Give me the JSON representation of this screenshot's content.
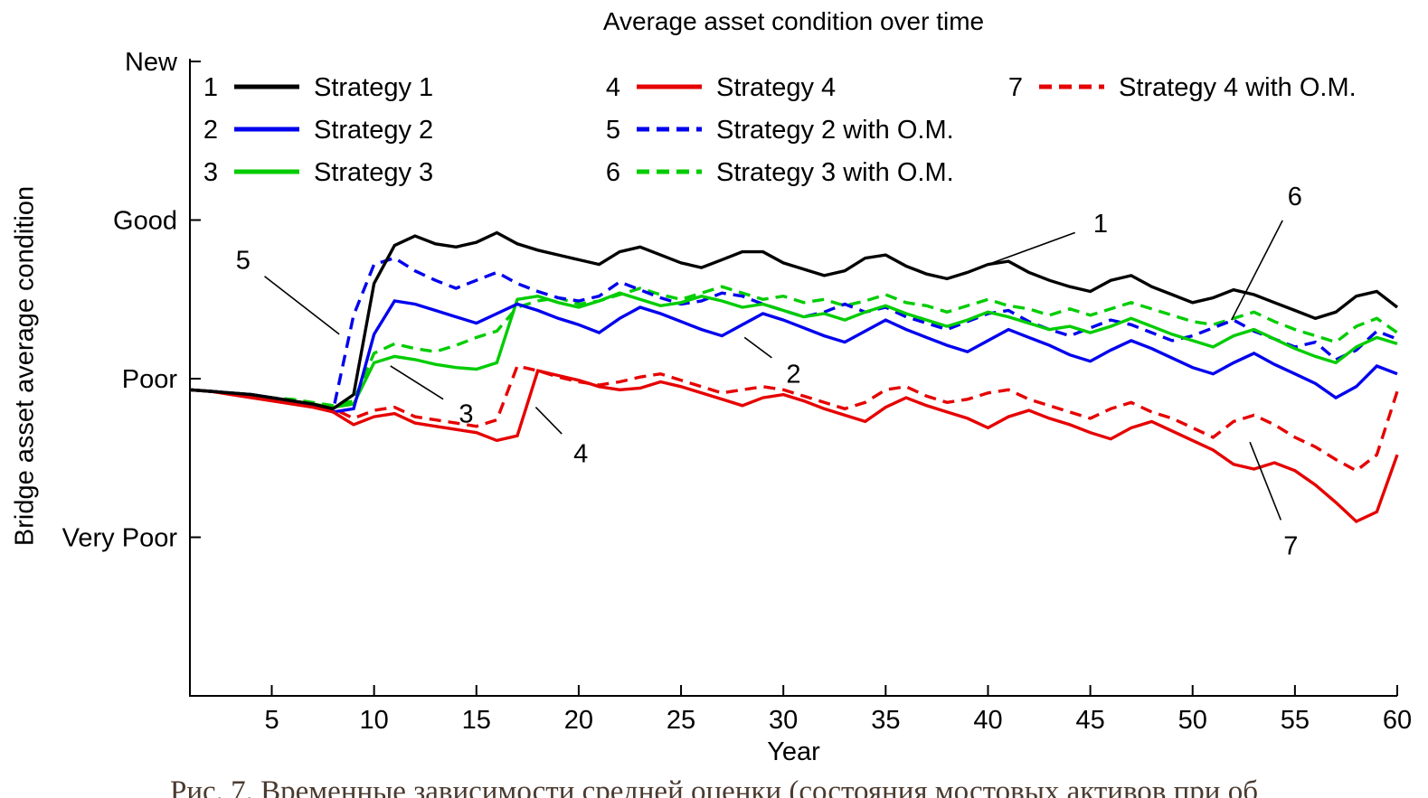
{
  "caption": {
    "text": "Рис. 7. Временные зависимости средней оценки (состояния мостовых активов при об"
  },
  "legend": {
    "items": [
      {
        "series": 0,
        "col": 0,
        "row": 0
      },
      {
        "series": 1,
        "col": 0,
        "row": 1
      },
      {
        "series": 2,
        "col": 0,
        "row": 2
      },
      {
        "series": 3,
        "col": 1,
        "row": 0
      },
      {
        "series": 4,
        "col": 1,
        "row": 1
      },
      {
        "series": 5,
        "col": 1,
        "row": 2
      },
      {
        "series": 6,
        "col": 2,
        "row": 0
      }
    ]
  },
  "annotations": [
    {
      "text": "1",
      "label": {
        "year": 45.5,
        "value": 2.98
      },
      "target": {
        "year": 40.0,
        "value": 2.72
      }
    },
    {
      "text": "2",
      "label": {
        "year": 30.5,
        "value": 2.03
      },
      "target": {
        "year": 28.1,
        "value": 2.26
      }
    },
    {
      "text": "3",
      "label": {
        "year": 14.5,
        "value": 1.78
      },
      "target": {
        "year": 10.8,
        "value": 2.08
      }
    },
    {
      "text": "4",
      "label": {
        "year": 20.1,
        "value": 1.53
      },
      "target": {
        "year": 17.9,
        "value": 1.82
      }
    },
    {
      "text": "5",
      "label": {
        "year": 3.6,
        "value": 2.75
      },
      "target": {
        "year": 8.3,
        "value": 2.28
      }
    },
    {
      "text": "6",
      "label": {
        "year": 55.0,
        "value": 3.15
      },
      "target": {
        "year": 51.9,
        "value": 2.37
      }
    },
    {
      "text": "7",
      "label": {
        "year": 54.8,
        "value": 0.95
      },
      "target": {
        "year": 52.8,
        "value": 1.6
      }
    }
  ],
  "chart_data": {
    "type": "line",
    "title": "Average asset condition over time",
    "xlabel": "Year",
    "ylabel": "Bridge asset average condition",
    "x_range": [
      1,
      60
    ],
    "y_range": [
      0,
      4.05
    ],
    "x_ticks": [
      5,
      10,
      15,
      20,
      25,
      30,
      35,
      40,
      45,
      50,
      55,
      60
    ],
    "y_ticks": [
      {
        "label": "New",
        "value": 4
      },
      {
        "label": "Good",
        "value": 3
      },
      {
        "label": "Poor",
        "value": 2
      },
      {
        "label": "Very Poor",
        "value": 1
      }
    ],
    "grid": false,
    "legend_position": "top-inside",
    "series": [
      {
        "num": 1,
        "name": "Strategy 1",
        "color": "#000000",
        "dashed": false,
        "values": [
          1.93,
          1.92,
          1.91,
          1.9,
          1.88,
          1.86,
          1.84,
          1.81,
          1.9,
          2.6,
          2.84,
          2.9,
          2.85,
          2.83,
          2.86,
          2.92,
          2.85,
          2.81,
          2.78,
          2.75,
          2.72,
          2.8,
          2.83,
          2.78,
          2.73,
          2.7,
          2.75,
          2.8,
          2.8,
          2.73,
          2.69,
          2.65,
          2.68,
          2.76,
          2.78,
          2.71,
          2.66,
          2.63,
          2.67,
          2.72,
          2.74,
          2.67,
          2.62,
          2.58,
          2.55,
          2.62,
          2.65,
          2.58,
          2.53,
          2.48,
          2.51,
          2.56,
          2.53,
          2.48,
          2.43,
          2.38,
          2.42,
          2.52,
          2.55,
          2.45
        ]
      },
      {
        "num": 2,
        "name": "Strategy 2",
        "color": "#0000ee",
        "dashed": false,
        "values": [
          1.93,
          1.92,
          1.91,
          1.9,
          1.88,
          1.86,
          1.83,
          1.79,
          1.81,
          2.28,
          2.49,
          2.47,
          2.43,
          2.39,
          2.35,
          2.41,
          2.47,
          2.43,
          2.38,
          2.34,
          2.29,
          2.38,
          2.45,
          2.41,
          2.36,
          2.31,
          2.27,
          2.34,
          2.41,
          2.37,
          2.32,
          2.27,
          2.23,
          2.3,
          2.37,
          2.31,
          2.26,
          2.21,
          2.17,
          2.24,
          2.31,
          2.26,
          2.21,
          2.15,
          2.11,
          2.18,
          2.24,
          2.19,
          2.13,
          2.07,
          2.03,
          2.1,
          2.16,
          2.09,
          2.03,
          1.97,
          1.88,
          1.95,
          2.08,
          2.03
        ]
      },
      {
        "num": 3,
        "name": "Strategy 3",
        "color": "#00cc00",
        "dashed": false,
        "values": [
          1.93,
          1.92,
          1.91,
          1.9,
          1.88,
          1.86,
          1.84,
          1.82,
          1.84,
          2.1,
          2.14,
          2.12,
          2.09,
          2.07,
          2.06,
          2.1,
          2.5,
          2.52,
          2.48,
          2.45,
          2.49,
          2.54,
          2.5,
          2.46,
          2.48,
          2.52,
          2.49,
          2.45,
          2.47,
          2.43,
          2.39,
          2.41,
          2.37,
          2.42,
          2.46,
          2.41,
          2.37,
          2.33,
          2.37,
          2.42,
          2.39,
          2.35,
          2.31,
          2.33,
          2.29,
          2.33,
          2.38,
          2.33,
          2.28,
          2.24,
          2.2,
          2.27,
          2.31,
          2.25,
          2.19,
          2.14,
          2.1,
          2.2,
          2.26,
          2.22
        ]
      },
      {
        "num": 4,
        "name": "Strategy 4",
        "color": "#e60000",
        "dashed": false,
        "values": [
          1.93,
          1.92,
          1.9,
          1.88,
          1.86,
          1.84,
          1.82,
          1.79,
          1.71,
          1.76,
          1.78,
          1.72,
          1.7,
          1.68,
          1.66,
          1.61,
          1.64,
          2.05,
          2.02,
          1.99,
          1.95,
          1.93,
          1.94,
          1.98,
          1.95,
          1.91,
          1.87,
          1.83,
          1.88,
          1.9,
          1.86,
          1.81,
          1.77,
          1.73,
          1.82,
          1.88,
          1.83,
          1.79,
          1.75,
          1.69,
          1.76,
          1.8,
          1.75,
          1.71,
          1.66,
          1.62,
          1.69,
          1.73,
          1.67,
          1.61,
          1.55,
          1.46,
          1.43,
          1.47,
          1.42,
          1.33,
          1.22,
          1.1,
          1.16,
          1.52
        ]
      },
      {
        "num": 5,
        "name": "Strategy 2 with O.M.",
        "color": "#0000ee",
        "dashed": true,
        "values": [
          1.93,
          1.92,
          1.91,
          1.89,
          1.87,
          1.85,
          1.83,
          1.8,
          2.4,
          2.72,
          2.76,
          2.68,
          2.62,
          2.57,
          2.62,
          2.67,
          2.6,
          2.55,
          2.51,
          2.49,
          2.52,
          2.61,
          2.56,
          2.51,
          2.47,
          2.49,
          2.54,
          2.52,
          2.47,
          2.43,
          2.39,
          2.42,
          2.47,
          2.42,
          2.45,
          2.39,
          2.35,
          2.31,
          2.36,
          2.41,
          2.43,
          2.36,
          2.31,
          2.27,
          2.32,
          2.37,
          2.34,
          2.29,
          2.24,
          2.27,
          2.32,
          2.37,
          2.3,
          2.25,
          2.2,
          2.23,
          2.12,
          2.18,
          2.3,
          2.25
        ]
      },
      {
        "num": 6,
        "name": "Strategy 3 with O.M.",
        "color": "#00cc00",
        "dashed": true,
        "values": [
          1.93,
          1.92,
          1.91,
          1.9,
          1.88,
          1.87,
          1.85,
          1.83,
          1.86,
          2.16,
          2.22,
          2.19,
          2.17,
          2.21,
          2.26,
          2.3,
          2.45,
          2.49,
          2.51,
          2.47,
          2.49,
          2.53,
          2.57,
          2.53,
          2.5,
          2.54,
          2.58,
          2.54,
          2.5,
          2.52,
          2.48,
          2.5,
          2.46,
          2.49,
          2.53,
          2.48,
          2.46,
          2.42,
          2.46,
          2.5,
          2.46,
          2.44,
          2.4,
          2.44,
          2.4,
          2.44,
          2.48,
          2.44,
          2.4,
          2.36,
          2.34,
          2.38,
          2.42,
          2.36,
          2.31,
          2.27,
          2.23,
          2.33,
          2.38,
          2.29
        ]
      },
      {
        "num": 7,
        "name": "Strategy 4 with O.M.",
        "color": "#e60000",
        "dashed": true,
        "values": [
          1.93,
          1.92,
          1.91,
          1.89,
          1.87,
          1.85,
          1.83,
          1.81,
          1.75,
          1.8,
          1.82,
          1.76,
          1.74,
          1.72,
          1.7,
          1.74,
          2.08,
          2.05,
          2.01,
          1.98,
          1.96,
          1.98,
          2.01,
          2.03,
          1.99,
          1.95,
          1.91,
          1.93,
          1.95,
          1.93,
          1.89,
          1.85,
          1.81,
          1.85,
          1.93,
          1.95,
          1.89,
          1.85,
          1.87,
          1.91,
          1.93,
          1.87,
          1.83,
          1.79,
          1.75,
          1.81,
          1.85,
          1.79,
          1.75,
          1.69,
          1.63,
          1.73,
          1.77,
          1.71,
          1.63,
          1.57,
          1.49,
          1.42,
          1.52,
          1.92
        ]
      }
    ]
  }
}
